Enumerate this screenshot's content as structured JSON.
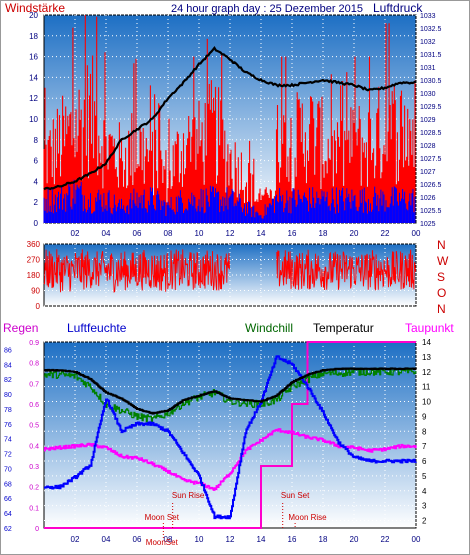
{
  "header": {
    "title": "24 hour graph day : 25 Dezember 2015",
    "left_label": "Windstärke",
    "right_label": "Luftdruck"
  },
  "colors": {
    "sky_top": "#1d6fc4",
    "sky_bottom": "#ffffff",
    "wind_gust": "#ff0000",
    "wind_avg": "#0000ff",
    "pressure": "#000000",
    "humidity": "#0000ff",
    "temperature": "#000000",
    "windchill": "#008000",
    "dewpoint": "#ff00ff",
    "rain": "#ff0000",
    "title": "#000080",
    "label_red": "#cc0000"
  },
  "chart_data": [
    {
      "type": "bar",
      "name": "wind",
      "x_ticks": [
        "02",
        "04",
        "06",
        "08",
        "10",
        "12",
        "14",
        "16",
        "18",
        "20",
        "22",
        "00"
      ],
      "left_ticks": [
        "0",
        "2",
        "4",
        "6",
        "8",
        "10",
        "12",
        "14",
        "16",
        "18",
        "20"
      ],
      "right_ticks": [
        "1025",
        "1025.5",
        "1026",
        "1026.5",
        "1027",
        "1027.5",
        "1028",
        "1028.5",
        "1029",
        "1029.5",
        "1030",
        "1030.5",
        "1031",
        "1031.5",
        "1032",
        "1032.5",
        "1033"
      ],
      "ylim": [
        0,
        20
      ],
      "y2lim": [
        1025,
        1033
      ],
      "gust_hourly": [
        8,
        10,
        12,
        14,
        10,
        8,
        10,
        8,
        6,
        10,
        10,
        12,
        8,
        6,
        2,
        10,
        10,
        12,
        10,
        8,
        10,
        10,
        12,
        12
      ],
      "avg_hourly": [
        3,
        3,
        4,
        3,
        3,
        2,
        3,
        3,
        2,
        3,
        3,
        3,
        3,
        2,
        1,
        3,
        3,
        3,
        3,
        3,
        3,
        3,
        3,
        3
      ],
      "pressure_hourly": [
        1026.3,
        1026.4,
        1026.6,
        1026.9,
        1027.3,
        1028.2,
        1028.6,
        1029.0,
        1029.8,
        1030.4,
        1031.1,
        1031.7,
        1031.3,
        1030.8,
        1030.5,
        1030.3,
        1030.3,
        1030.4,
        1030.5,
        1030.4,
        1030.3,
        1030.1,
        1030.2,
        1030.4
      ]
    },
    {
      "type": "scatter",
      "name": "wind_direction",
      "x_ticks": [
        "02",
        "04",
        "06",
        "08",
        "10",
        "12",
        "14",
        "16",
        "18",
        "20",
        "22",
        "00"
      ],
      "left_ticks": [
        "0",
        "90",
        "180",
        "270",
        "360"
      ],
      "compass": [
        "N",
        "W",
        "S",
        "O",
        "N"
      ],
      "ylim": [
        0,
        360
      ],
      "range_hourly": [
        [
          90,
          330
        ],
        [
          80,
          320
        ],
        [
          90,
          330
        ],
        [
          100,
          320
        ],
        [
          80,
          330
        ],
        [
          90,
          320
        ],
        [
          90,
          330
        ],
        [
          80,
          320
        ],
        [
          90,
          330
        ],
        [
          90,
          320
        ],
        [
          90,
          330
        ],
        [
          90,
          320
        ],
        [
          0,
          0
        ],
        [
          0,
          0
        ],
        [
          0,
          0
        ],
        [
          90,
          330
        ],
        [
          90,
          320
        ],
        [
          90,
          330
        ],
        [
          90,
          320
        ],
        [
          90,
          330
        ],
        [
          90,
          320
        ],
        [
          90,
          330
        ],
        [
          90,
          320
        ],
        [
          90,
          330
        ]
      ]
    },
    {
      "type": "line",
      "name": "temperature_humidity",
      "legend": [
        "Regen",
        "Luftfeuchte",
        "Windchill",
        "Temperatur",
        "Taupunkt"
      ],
      "x_ticks": [
        "02",
        "04",
        "06",
        "08",
        "10",
        "12",
        "14",
        "16",
        "18",
        "20",
        "22",
        "00"
      ],
      "rain_ticks": [
        "0",
        "0.1",
        "0.2",
        "0.3",
        "0.4",
        "0.5",
        "0.6",
        "0.7",
        "0.8",
        "0.9"
      ],
      "humidity_ticks": [
        "62",
        "64",
        "66",
        "68",
        "70",
        "72",
        "74",
        "76",
        "78",
        "80",
        "82",
        "84",
        "86"
      ],
      "temp_ticks": [
        "2",
        "3",
        "4",
        "5",
        "6",
        "7",
        "8",
        "9",
        "10",
        "11",
        "12",
        "13",
        "14"
      ],
      "rain_lim": [
        0,
        0.9
      ],
      "humidity_lim": [
        62,
        87
      ],
      "temp_lim": [
        1.5,
        14
      ],
      "temperature_hourly": [
        12.1,
        12.1,
        12.0,
        11.5,
        10.6,
        10.2,
        9.5,
        9.2,
        9.4,
        10.1,
        10.4,
        10.7,
        10.2,
        10.1,
        10.0,
        10.4,
        11.3,
        11.8,
        12.1,
        12.2,
        12.2,
        12.2,
        12.2,
        12.2
      ],
      "windchill_hourly": [
        11.8,
        11.8,
        11.7,
        11.0,
        9.8,
        9.4,
        9.0,
        8.8,
        9.2,
        9.9,
        10.3,
        10.6,
        10.0,
        9.9,
        9.8,
        10.1,
        11.0,
        11.5,
        11.9,
        11.9,
        12.0,
        12.0,
        12.0,
        12.0
      ],
      "dewpoint_hourly": [
        6.8,
        6.9,
        7.0,
        7.1,
        6.9,
        6.3,
        6.2,
        5.8,
        5.3,
        4.7,
        4.5,
        4.1,
        5.2,
        6.7,
        7.4,
        8.1,
        7.9,
        7.6,
        7.4,
        7.0,
        6.9,
        6.7,
        6.8,
        7.0
      ],
      "humidity_hourly": [
        67.5,
        67.5,
        68.8,
        70.5,
        79.5,
        75.0,
        76.0,
        76.0,
        75.0,
        72.0,
        69.0,
        63.5,
        63.5,
        75.0,
        79.0,
        85.0,
        84.0,
        81.0,
        77.5,
        73.5,
        71.5,
        71.0,
        71.0,
        71.0
      ],
      "rain_hourly": [
        0,
        0,
        0,
        0,
        0,
        0,
        0,
        0,
        0,
        0,
        0,
        0,
        0,
        0,
        0.3,
        0.3,
        0.6,
        0.9,
        0.9,
        0.9,
        0.9,
        0.9,
        0.9,
        0.9
      ],
      "annotations": [
        "Sun Rise",
        "Moon Set",
        "Sun Set",
        "Moon Rise",
        "MoonSet"
      ]
    }
  ]
}
